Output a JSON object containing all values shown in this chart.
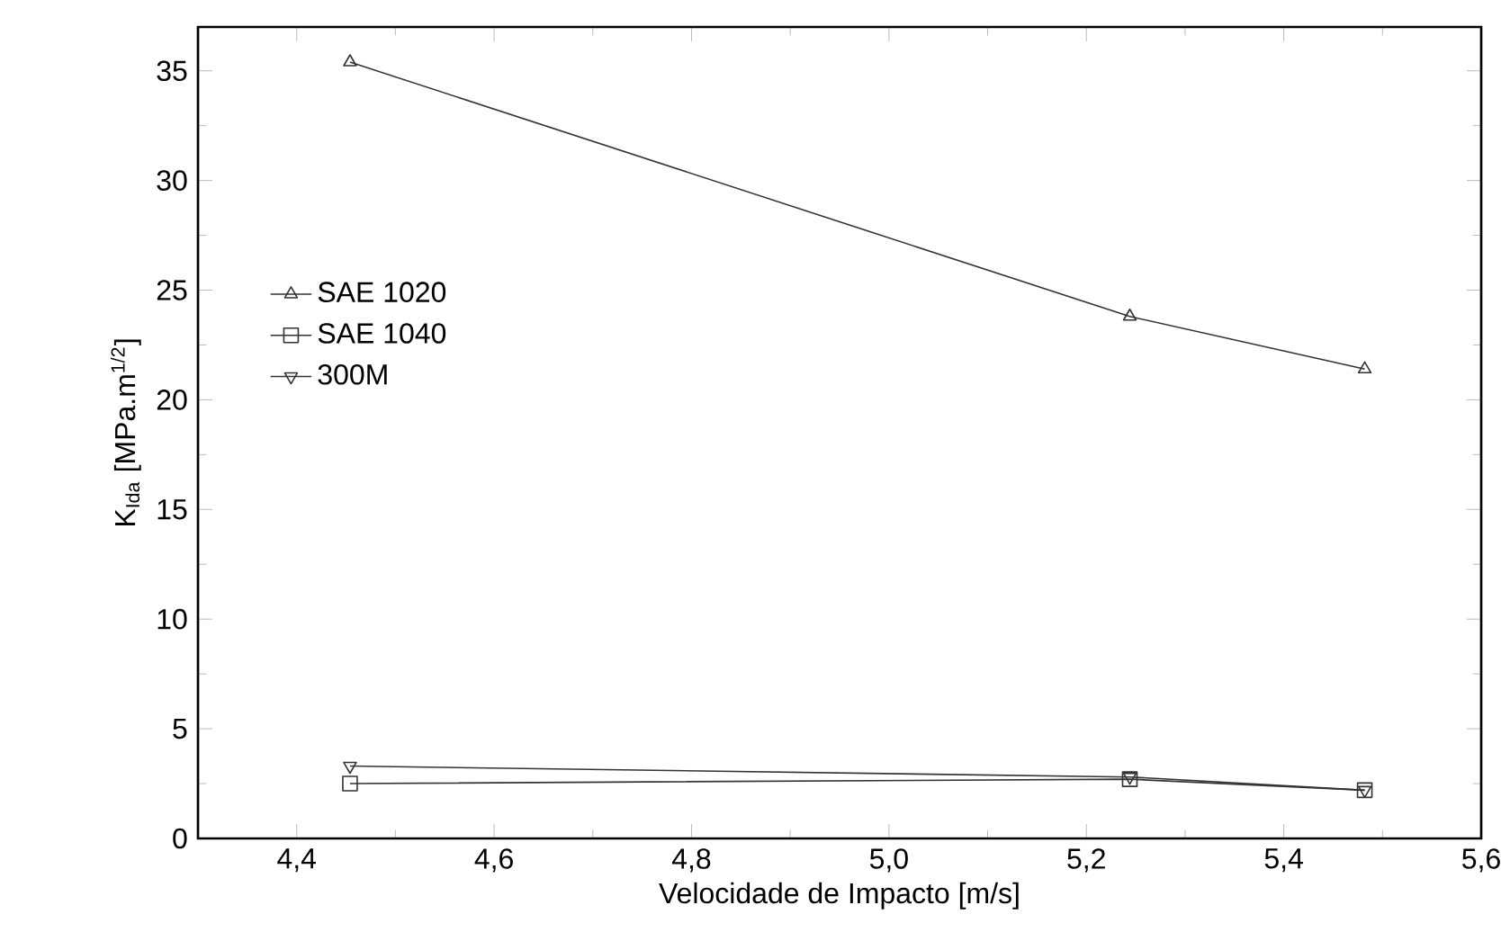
{
  "chart_data": {
    "type": "line",
    "xlabel": "Velocidade de Impacto [m/s]",
    "ylabel": "K$_{Ida}$  [MPa.m$^{1/2}$]",
    "x": [
      4.454,
      5.244,
      5.482
    ],
    "series": [
      {
        "name": "SAE 1020",
        "color": "#333333",
        "marker": "triangle",
        "values": [
          35.4,
          23.8,
          21.4
        ]
      },
      {
        "name": "SAE 1040",
        "color": "#333333",
        "marker": "square",
        "values": [
          2.5,
          2.7,
          2.2
        ]
      },
      {
        "name": "300M",
        "color": "#333333",
        "marker": "triangle down",
        "values": [
          3.3,
          2.8,
          2.2
        ]
      }
    ],
    "xlim": [
      4.3,
      5.6
    ],
    "ylim": [
      0,
      37
    ],
    "xticks": [
      {
        "value": 4.4,
        "label": "4,4"
      },
      {
        "value": 4.6,
        "label": "4,6"
      },
      {
        "value": 4.8,
        "label": "4,8"
      },
      {
        "value": 5.0,
        "label": "5,0"
      },
      {
        "value": 5.2,
        "label": "5,2"
      },
      {
        "value": 5.4,
        "label": "5,4"
      },
      {
        "value": 5.6,
        "label": "5,6"
      }
    ],
    "yticks": [
      0,
      5,
      10,
      15,
      20,
      25,
      30,
      35
    ],
    "grid": false,
    "legend": "left",
    "line_style": "solid"
  }
}
